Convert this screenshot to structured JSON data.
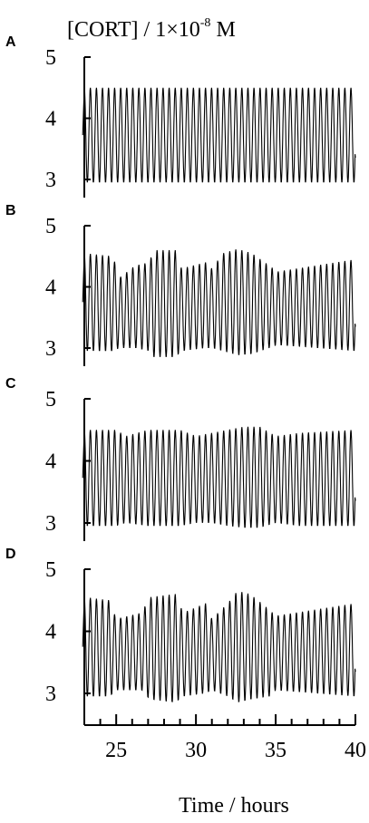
{
  "chart_data": {
    "type": "line",
    "ylabel_main": "[CORT] / 1×10",
    "ylabel_exp": "-8",
    "ylabel_unit": " M",
    "xlabel": "Time / hours",
    "xlim": [
      23,
      40
    ],
    "ylim": [
      2.8,
      5.2
    ],
    "x_ticks": [
      25,
      30,
      35,
      40
    ],
    "y_ticks": [
      3,
      4,
      5
    ],
    "period_hours": 0.38,
    "panels": [
      {
        "label": "A",
        "envelope": [
          [
            23.0,
            4.5,
            2.95
          ],
          [
            40.0,
            4.5,
            2.95
          ]
        ]
      },
      {
        "label": "B",
        "envelope": [
          [
            23.0,
            4.55,
            2.95
          ],
          [
            24.8,
            4.5,
            2.95
          ],
          [
            25.2,
            4.15,
            3.0
          ],
          [
            26.2,
            4.35,
            3.0
          ],
          [
            27.1,
            4.4,
            2.95
          ],
          [
            27.3,
            4.6,
            2.85
          ],
          [
            28.7,
            4.6,
            2.85
          ],
          [
            29.1,
            4.3,
            2.95
          ],
          [
            30.6,
            4.4,
            3.0
          ],
          [
            31.0,
            4.3,
            3.0
          ],
          [
            31.7,
            4.55,
            2.95
          ],
          [
            32.6,
            4.62,
            2.88
          ],
          [
            33.5,
            4.55,
            2.9
          ],
          [
            34.6,
            4.35,
            3.0
          ],
          [
            35.1,
            4.25,
            3.05
          ],
          [
            40.0,
            4.45,
            2.95
          ]
        ]
      },
      {
        "label": "C",
        "envelope": [
          [
            23.0,
            4.5,
            2.95
          ],
          [
            25.0,
            4.5,
            2.95
          ],
          [
            25.6,
            4.4,
            3.0
          ],
          [
            27.0,
            4.5,
            2.95
          ],
          [
            29.0,
            4.5,
            2.95
          ],
          [
            30.0,
            4.4,
            3.0
          ],
          [
            31.0,
            4.45,
            3.0
          ],
          [
            32.0,
            4.5,
            2.95
          ],
          [
            33.0,
            4.55,
            2.92
          ],
          [
            34.0,
            4.55,
            2.92
          ],
          [
            35.0,
            4.4,
            3.0
          ],
          [
            36.5,
            4.45,
            2.95
          ],
          [
            40.0,
            4.5,
            2.95
          ]
        ]
      },
      {
        "label": "D",
        "envelope": [
          [
            23.0,
            4.55,
            2.95
          ],
          [
            24.6,
            4.5,
            2.95
          ],
          [
            25.0,
            4.2,
            3.05
          ],
          [
            26.6,
            4.3,
            3.05
          ],
          [
            27.1,
            4.55,
            2.9
          ],
          [
            28.7,
            4.6,
            2.85
          ],
          [
            29.2,
            4.3,
            2.95
          ],
          [
            30.6,
            4.45,
            3.0
          ],
          [
            31.0,
            4.2,
            3.05
          ],
          [
            32.0,
            4.45,
            2.95
          ],
          [
            32.6,
            4.65,
            2.85
          ],
          [
            33.4,
            4.6,
            2.9
          ],
          [
            34.6,
            4.35,
            2.95
          ],
          [
            35.0,
            4.25,
            3.05
          ],
          [
            40.0,
            4.45,
            2.95
          ]
        ]
      }
    ]
  }
}
